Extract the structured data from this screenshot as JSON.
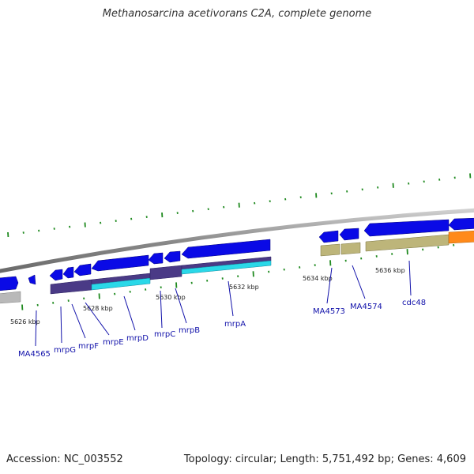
{
  "title": "Methanosarcina acetivorans C2A, complete genome",
  "footer": {
    "accession": "Accession: NC_003552",
    "summary": "Topology: circular; Length: 5,751,492 bp; Genes: 4,609"
  },
  "colors": {
    "backbone": "#8a8a8a",
    "forward_cds": "#0a0ae6",
    "tick": "#1f8a1f",
    "label": "#1111aa",
    "purple": "#4a3a86",
    "cyan": "#2ad8e8",
    "khaki": "#bdb57a",
    "orange": "#ff8a1a",
    "gray_feature": "#b9b9b9"
  },
  "ruler_labels": [
    "5626 kbp",
    "5628 kbp",
    "5630 kbp",
    "5632 kbp",
    "5634 kbp",
    "5636 kbp"
  ],
  "gene_labels": [
    "MA4565",
    "mrpG",
    "mrpF",
    "mrpE",
    "mrpD",
    "mrpC",
    "mrpB",
    "mrpA",
    "MA4573",
    "MA4574",
    "cdc48"
  ]
}
